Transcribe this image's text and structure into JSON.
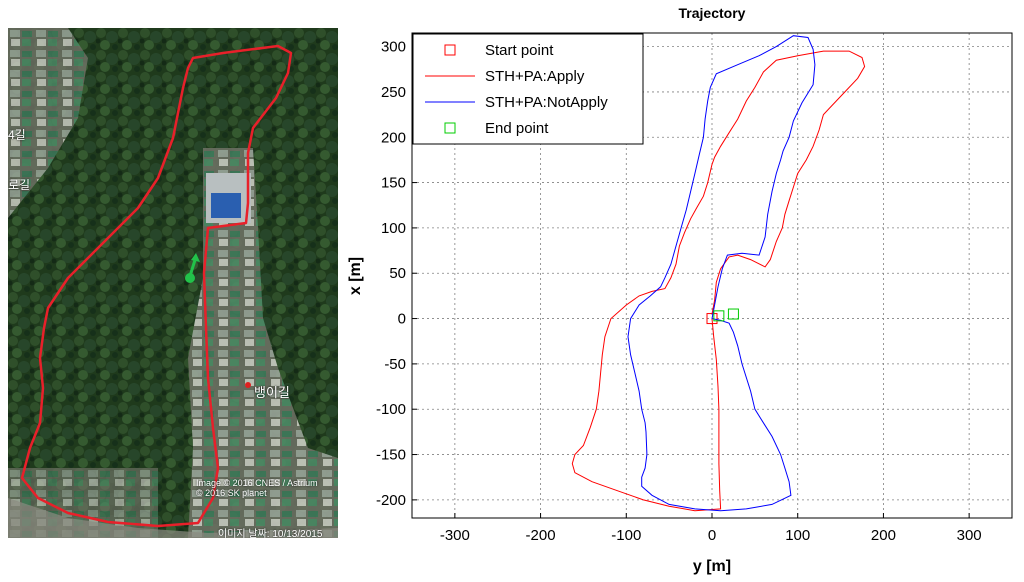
{
  "map": {
    "road_label": "뱅이길",
    "credits": "Image © 2016 CNES / Astrium\n© 2016 SK planet",
    "date_label": "이미지 날짜: 10/13/2015",
    "side_label_1": "4길",
    "side_label_2": "로길",
    "colors": {
      "route": "#e8202a",
      "marker": "#22c24a"
    }
  },
  "chart_data": {
    "type": "line",
    "title": "Trajectory",
    "xlabel": "y [m]",
    "ylabel": "x [m]",
    "xlim": [
      -350,
      350
    ],
    "ylim": [
      -220,
      315
    ],
    "xticks": [
      -300,
      -200,
      -100,
      0,
      100,
      200,
      300
    ],
    "yticks": [
      -200,
      -150,
      -100,
      -50,
      0,
      50,
      100,
      150,
      200,
      250,
      300
    ],
    "grid": true,
    "legend_position": "top-left",
    "series": [
      {
        "name": "Start point",
        "type": "marker",
        "color": "#ff0000",
        "points": [
          [
            0,
            0
          ]
        ]
      },
      {
        "name": "STH+PA:Apply",
        "type": "line",
        "color": "#ff0000",
        "points": [
          [
            0,
            0
          ],
          [
            2,
            -20
          ],
          [
            5,
            -45
          ],
          [
            7,
            -75
          ],
          [
            8,
            -100
          ],
          [
            8,
            -130
          ],
          [
            8,
            -160
          ],
          [
            9,
            -190
          ],
          [
            10,
            -210
          ],
          [
            -20,
            -212
          ],
          [
            -50,
            -207
          ],
          [
            -80,
            -200
          ],
          [
            -110,
            -190
          ],
          [
            -140,
            -180
          ],
          [
            -160,
            -170
          ],
          [
            -163,
            -160
          ],
          [
            -160,
            -150
          ],
          [
            -150,
            -140
          ],
          [
            -142,
            -120
          ],
          [
            -135,
            -100
          ],
          [
            -132,
            -80
          ],
          [
            -130,
            -60
          ],
          [
            -128,
            -40
          ],
          [
            -125,
            -20
          ],
          [
            -118,
            0
          ],
          [
            -100,
            15
          ],
          [
            -85,
            25
          ],
          [
            -70,
            30
          ],
          [
            -55,
            33
          ],
          [
            -48,
            45
          ],
          [
            -42,
            60
          ],
          [
            -38,
            80
          ],
          [
            -32,
            95
          ],
          [
            -25,
            110
          ],
          [
            -18,
            122
          ],
          [
            -10,
            135
          ],
          [
            -5,
            150
          ],
          [
            0,
            170
          ],
          [
            3,
            178
          ],
          [
            10,
            190
          ],
          [
            20,
            205
          ],
          [
            30,
            220
          ],
          [
            40,
            240
          ],
          [
            50,
            255
          ],
          [
            60,
            272
          ],
          [
            75,
            285
          ],
          [
            100,
            290
          ],
          [
            130,
            295
          ],
          [
            160,
            295
          ],
          [
            175,
            288
          ],
          [
            178,
            278
          ],
          [
            170,
            265
          ],
          [
            155,
            250
          ],
          [
            140,
            235
          ],
          [
            130,
            225
          ],
          [
            125,
            208
          ],
          [
            118,
            190
          ],
          [
            110,
            175
          ],
          [
            100,
            160
          ],
          [
            95,
            145
          ],
          [
            90,
            130
          ],
          [
            85,
            115
          ],
          [
            82,
            100
          ],
          [
            75,
            85
          ],
          [
            68,
            65
          ],
          [
            62,
            57
          ],
          [
            45,
            65
          ],
          [
            30,
            70
          ],
          [
            20,
            68
          ],
          [
            10,
            55
          ],
          [
            5,
            40
          ],
          [
            3,
            20
          ],
          [
            0,
            5
          ]
        ]
      },
      {
        "name": "STH+PA:NotApply",
        "type": "line",
        "color": "#0000ff",
        "points": [
          [
            0,
            0
          ],
          [
            3,
            15
          ],
          [
            7,
            35
          ],
          [
            12,
            55
          ],
          [
            18,
            70
          ],
          [
            35,
            72
          ],
          [
            55,
            70
          ],
          [
            62,
            90
          ],
          [
            65,
            115
          ],
          [
            70,
            140
          ],
          [
            75,
            160
          ],
          [
            80,
            175
          ],
          [
            83,
            185
          ],
          [
            90,
            200
          ],
          [
            95,
            218
          ],
          [
            105,
            238
          ],
          [
            118,
            258
          ],
          [
            120,
            280
          ],
          [
            118,
            297
          ],
          [
            112,
            310
          ],
          [
            95,
            312
          ],
          [
            75,
            300
          ],
          [
            55,
            290
          ],
          [
            30,
            280
          ],
          [
            5,
            270
          ],
          [
            -2,
            255
          ],
          [
            -5,
            240
          ],
          [
            -8,
            220
          ],
          [
            -10,
            200
          ],
          [
            -15,
            180
          ],
          [
            -20,
            160
          ],
          [
            -25,
            140
          ],
          [
            -30,
            120
          ],
          [
            -36,
            100
          ],
          [
            -42,
            80
          ],
          [
            -48,
            60
          ],
          [
            -55,
            45
          ],
          [
            -60,
            35
          ],
          [
            -72,
            25
          ],
          [
            -85,
            15
          ],
          [
            -95,
            0
          ],
          [
            -98,
            -20
          ],
          [
            -95,
            -40
          ],
          [
            -90,
            -60
          ],
          [
            -85,
            -80
          ],
          [
            -82,
            -100
          ],
          [
            -78,
            -115
          ],
          [
            -77,
            -125
          ],
          [
            -76,
            -150
          ],
          [
            -78,
            -165
          ],
          [
            -82,
            -175
          ],
          [
            -82,
            -185
          ],
          [
            -70,
            -195
          ],
          [
            -50,
            -205
          ],
          [
            -20,
            -210
          ],
          [
            10,
            -212
          ],
          [
            40,
            -210
          ],
          [
            70,
            -205
          ],
          [
            92,
            -195
          ],
          [
            90,
            -180
          ],
          [
            85,
            -165
          ],
          [
            80,
            -150
          ],
          [
            70,
            -130
          ],
          [
            60,
            -115
          ],
          [
            50,
            -100
          ],
          [
            45,
            -80
          ],
          [
            35,
            -50
          ],
          [
            30,
            -30
          ],
          [
            25,
            -15
          ],
          [
            20,
            -5
          ],
          [
            10,
            -2
          ],
          [
            0,
            0
          ]
        ]
      },
      {
        "name": "End point",
        "type": "marker",
        "color": "#00cc00",
        "points": [
          [
            8,
            3
          ],
          [
            25,
            5
          ]
        ]
      }
    ]
  }
}
